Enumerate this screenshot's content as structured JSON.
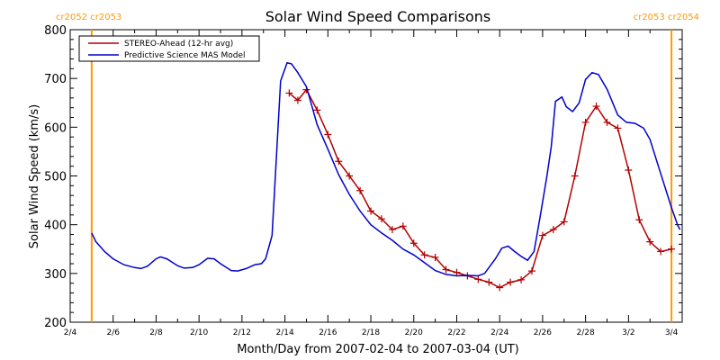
{
  "chart_data": {
    "type": "line",
    "title": "Solar Wind Speed Comparisons",
    "xlabel": "Month/Day from 2007-02-04 to 2007-03-04 (UT)",
    "ylabel": "Solar Wind Speed (km/s)",
    "xlim": [
      0,
      28.5
    ],
    "ylim": [
      200,
      800
    ],
    "x_ticks": [
      {
        "x": 0,
        "label": "2/4"
      },
      {
        "x": 2,
        "label": "2/6"
      },
      {
        "x": 4,
        "label": "2/8"
      },
      {
        "x": 6,
        "label": "2/10"
      },
      {
        "x": 8,
        "label": "2/12"
      },
      {
        "x": 10,
        "label": "2/14"
      },
      {
        "x": 12,
        "label": "2/16"
      },
      {
        "x": 14,
        "label": "2/18"
      },
      {
        "x": 16,
        "label": "2/20"
      },
      {
        "x": 18,
        "label": "2/22"
      },
      {
        "x": 20,
        "label": "2/24"
      },
      {
        "x": 22,
        "label": "2/26"
      },
      {
        "x": 24,
        "label": "2/28"
      },
      {
        "x": 26,
        "label": "3/2"
      },
      {
        "x": 28,
        "label": "3/4"
      }
    ],
    "y_ticks": [
      200,
      300,
      400,
      500,
      600,
      700,
      800
    ],
    "legend_position": "top-left",
    "series": [
      {
        "name": "STEREO-Ahead (12-hr avg)",
        "color": "#b30000",
        "marker": "plus",
        "points": [
          [
            10.2,
            670
          ],
          [
            10.6,
            655
          ],
          [
            11.0,
            677
          ],
          [
            11.5,
            635
          ],
          [
            12.0,
            585
          ],
          [
            12.5,
            530
          ],
          [
            13.0,
            500
          ],
          [
            13.5,
            470
          ],
          [
            14.0,
            428
          ],
          [
            14.5,
            412
          ],
          [
            15.0,
            390
          ],
          [
            15.5,
            397
          ],
          [
            16.0,
            362
          ],
          [
            16.5,
            338
          ],
          [
            17.0,
            333
          ],
          [
            17.5,
            308
          ],
          [
            18.0,
            302
          ],
          [
            18.5,
            295
          ],
          [
            19.0,
            288
          ],
          [
            19.5,
            282
          ],
          [
            20.0,
            271
          ],
          [
            20.5,
            282
          ],
          [
            21.0,
            287
          ],
          [
            21.5,
            305
          ],
          [
            22.0,
            378
          ],
          [
            22.5,
            390
          ],
          [
            23.0,
            406
          ],
          [
            23.5,
            500
          ],
          [
            24.0,
            610
          ],
          [
            24.5,
            643
          ],
          [
            25.0,
            610
          ],
          [
            25.5,
            598
          ],
          [
            26.0,
            512
          ],
          [
            26.5,
            410
          ],
          [
            27.0,
            365
          ],
          [
            27.5,
            345
          ],
          [
            28.0,
            350
          ]
        ]
      },
      {
        "name": "Predictive Science MAS Model",
        "color": "#0000cc",
        "marker": "none",
        "points": [
          [
            1.0,
            383
          ],
          [
            1.2,
            365
          ],
          [
            1.6,
            345
          ],
          [
            2.0,
            330
          ],
          [
            2.5,
            318
          ],
          [
            3.0,
            312
          ],
          [
            3.3,
            310
          ],
          [
            3.6,
            315
          ],
          [
            4.0,
            330
          ],
          [
            4.2,
            334
          ],
          [
            4.5,
            330
          ],
          [
            5.0,
            316
          ],
          [
            5.3,
            311
          ],
          [
            5.7,
            312
          ],
          [
            6.0,
            318
          ],
          [
            6.4,
            331
          ],
          [
            6.7,
            330
          ],
          [
            7.0,
            320
          ],
          [
            7.5,
            306
          ],
          [
            7.8,
            305
          ],
          [
            8.2,
            310
          ],
          [
            8.6,
            318
          ],
          [
            8.9,
            320
          ],
          [
            9.1,
            330
          ],
          [
            9.4,
            378
          ],
          [
            9.8,
            695
          ],
          [
            10.1,
            732
          ],
          [
            10.3,
            730
          ],
          [
            10.6,
            712
          ],
          [
            11.0,
            683
          ],
          [
            11.5,
            605
          ],
          [
            12.0,
            555
          ],
          [
            12.5,
            503
          ],
          [
            13.0,
            462
          ],
          [
            13.5,
            428
          ],
          [
            14.0,
            400
          ],
          [
            14.5,
            383
          ],
          [
            15.0,
            368
          ],
          [
            15.5,
            350
          ],
          [
            16.0,
            338
          ],
          [
            16.5,
            322
          ],
          [
            17.0,
            306
          ],
          [
            17.5,
            298
          ],
          [
            18.0,
            295
          ],
          [
            18.5,
            296
          ],
          [
            19.0,
            295
          ],
          [
            19.3,
            300
          ],
          [
            19.8,
            330
          ],
          [
            20.1,
            352
          ],
          [
            20.4,
            356
          ],
          [
            20.7,
            345
          ],
          [
            21.0,
            335
          ],
          [
            21.3,
            327
          ],
          [
            21.6,
            345
          ],
          [
            21.9,
            420
          ],
          [
            22.2,
            500
          ],
          [
            22.4,
            560
          ],
          [
            22.6,
            653
          ],
          [
            22.9,
            662
          ],
          [
            23.1,
            642
          ],
          [
            23.4,
            632
          ],
          [
            23.7,
            650
          ],
          [
            24.0,
            698
          ],
          [
            24.3,
            712
          ],
          [
            24.6,
            708
          ],
          [
            25.0,
            678
          ],
          [
            25.5,
            625
          ],
          [
            25.9,
            610
          ],
          [
            26.3,
            608
          ],
          [
            26.7,
            598
          ],
          [
            27.0,
            575
          ],
          [
            27.5,
            505
          ],
          [
            28.0,
            435
          ],
          [
            28.3,
            398
          ],
          [
            28.4,
            390
          ]
        ]
      }
    ],
    "vertical_markers": [
      {
        "x": 1.0,
        "color": "#ff9900",
        "label": "cr2052 cr2053",
        "label_side": "left"
      },
      {
        "x": 28.0,
        "color": "#ff9900",
        "label": "cr2053 cr2054",
        "label_side": "right"
      }
    ]
  }
}
